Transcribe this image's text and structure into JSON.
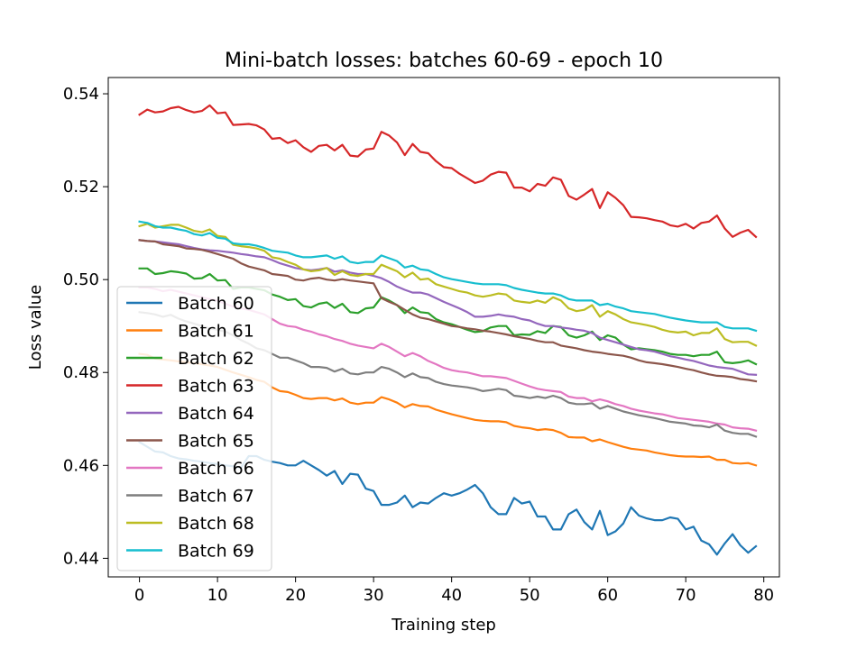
{
  "chart_data": {
    "type": "line",
    "title": "Mini-batch losses: batches 60-69 - epoch 10",
    "xlabel": "Training step",
    "ylabel": "Loss value",
    "xlim": [
      -4,
      82
    ],
    "ylim": [
      0.436,
      0.5435
    ],
    "xticks": [
      0,
      10,
      20,
      30,
      40,
      50,
      60,
      70,
      80
    ],
    "yticks": [
      0.44,
      0.46,
      0.48,
      0.5,
      0.52,
      0.54
    ],
    "ytick_labels": [
      "0.44",
      "0.46",
      "0.48",
      "0.50",
      "0.52",
      "0.54"
    ],
    "grid": false,
    "legend_position": "lower-left",
    "series": [
      {
        "name": "Batch 60",
        "color": "#1f77b4",
        "values": [
          0.465,
          0.464,
          0.463,
          0.4628,
          0.462,
          0.4615,
          0.4613,
          0.461,
          0.4608,
          0.4605,
          0.4603,
          0.46,
          0.4598,
          0.4595,
          0.462,
          0.462,
          0.4612,
          0.4608,
          0.4605,
          0.46,
          0.46,
          0.461,
          0.46,
          0.459,
          0.4578,
          0.4588,
          0.456,
          0.4582,
          0.458,
          0.455,
          0.4545,
          0.4515,
          0.4515,
          0.452,
          0.4535,
          0.451,
          0.452,
          0.4518,
          0.453,
          0.454,
          0.4535,
          0.454,
          0.4548,
          0.4558,
          0.454,
          0.451,
          0.4495,
          0.4495,
          0.453,
          0.4518,
          0.4522,
          0.449,
          0.449,
          0.4462,
          0.4462,
          0.4495,
          0.4505,
          0.4478,
          0.4462,
          0.4502,
          0.445,
          0.4458,
          0.4475,
          0.451,
          0.4492,
          0.4486,
          0.4482,
          0.4482,
          0.4488,
          0.4485,
          0.4462,
          0.4468,
          0.4438,
          0.443,
          0.4408,
          0.4432,
          0.4452,
          0.4428,
          0.4412,
          0.4426
        ]
      },
      {
        "name": "Batch 61",
        "color": "#ff7f0e",
        "values": [
          0.484,
          0.4838,
          0.483,
          0.4828,
          0.4826,
          0.4824,
          0.4822,
          0.482,
          0.4818,
          0.4815,
          0.4812,
          0.4806,
          0.48,
          0.4795,
          0.479,
          0.4784,
          0.478,
          0.4768,
          0.476,
          0.4758,
          0.4752,
          0.4745,
          0.4743,
          0.4745,
          0.4745,
          0.474,
          0.4744,
          0.4735,
          0.4732,
          0.4735,
          0.4735,
          0.4747,
          0.4742,
          0.4735,
          0.4725,
          0.4732,
          0.4728,
          0.4727,
          0.472,
          0.4715,
          0.471,
          0.4706,
          0.4702,
          0.4698,
          0.4696,
          0.4695,
          0.4695,
          0.4693,
          0.4685,
          0.4682,
          0.468,
          0.4676,
          0.4678,
          0.4676,
          0.467,
          0.4661,
          0.466,
          0.466,
          0.4652,
          0.4656,
          0.465,
          0.4645,
          0.464,
          0.4636,
          0.4634,
          0.4632,
          0.4628,
          0.4625,
          0.4622,
          0.462,
          0.4619,
          0.4619,
          0.4618,
          0.4619,
          0.4612,
          0.4612,
          0.4605,
          0.4604,
          0.4605,
          0.46
        ]
      },
      {
        "name": "Batch 62",
        "color": "#2ca02c",
        "values": [
          0.5024,
          0.5024,
          0.5012,
          0.5014,
          0.5018,
          0.5016,
          0.5013,
          0.5002,
          0.5003,
          0.5012,
          0.4998,
          0.4999,
          0.498,
          0.4983,
          0.4983,
          0.498,
          0.4977,
          0.4968,
          0.4963,
          0.4956,
          0.4958,
          0.4943,
          0.494,
          0.4948,
          0.4951,
          0.4939,
          0.4948,
          0.493,
          0.4928,
          0.4938,
          0.494,
          0.4962,
          0.4955,
          0.4945,
          0.4928,
          0.494,
          0.493,
          0.4928,
          0.4915,
          0.4908,
          0.4904,
          0.4898,
          0.4892,
          0.4887,
          0.4889,
          0.4897,
          0.49,
          0.49,
          0.488,
          0.4882,
          0.4881,
          0.4889,
          0.4885,
          0.49,
          0.4898,
          0.488,
          0.4875,
          0.488,
          0.4888,
          0.487,
          0.488,
          0.4875,
          0.486,
          0.485,
          0.4852,
          0.485,
          0.4848,
          0.4845,
          0.484,
          0.4838,
          0.4838,
          0.4835,
          0.4838,
          0.4838,
          0.4845,
          0.4822,
          0.482,
          0.4822,
          0.4826,
          0.4818
        ]
      },
      {
        "name": "Batch 63",
        "color": "#d62728",
        "values": [
          0.5355,
          0.5366,
          0.536,
          0.5362,
          0.5369,
          0.5372,
          0.5365,
          0.536,
          0.5363,
          0.5375,
          0.5358,
          0.536,
          0.5333,
          0.5334,
          0.5335,
          0.5332,
          0.5323,
          0.5303,
          0.5305,
          0.5294,
          0.53,
          0.5285,
          0.5275,
          0.5288,
          0.529,
          0.5278,
          0.529,
          0.5267,
          0.5265,
          0.528,
          0.5282,
          0.5318,
          0.531,
          0.5295,
          0.5268,
          0.5292,
          0.5275,
          0.5272,
          0.5255,
          0.5242,
          0.524,
          0.5228,
          0.5218,
          0.5208,
          0.5213,
          0.5226,
          0.5232,
          0.523,
          0.5198,
          0.5198,
          0.519,
          0.5206,
          0.5202,
          0.522,
          0.5215,
          0.518,
          0.5172,
          0.5183,
          0.5195,
          0.5154,
          0.5188,
          0.5176,
          0.516,
          0.5135,
          0.5134,
          0.5132,
          0.5128,
          0.5125,
          0.5117,
          0.5114,
          0.512,
          0.511,
          0.5122,
          0.5125,
          0.5138,
          0.511,
          0.5092,
          0.5101,
          0.5107,
          0.5092
        ]
      },
      {
        "name": "Batch 64",
        "color": "#9467bd",
        "values": [
          0.5085,
          0.5083,
          0.5082,
          0.508,
          0.5078,
          0.5076,
          0.5072,
          0.5068,
          0.5065,
          0.5063,
          0.5062,
          0.506,
          0.5058,
          0.5055,
          0.5053,
          0.505,
          0.5048,
          0.5042,
          0.5035,
          0.503,
          0.5025,
          0.5022,
          0.502,
          0.5022,
          0.5025,
          0.5017,
          0.502,
          0.5015,
          0.5012,
          0.5012,
          0.5008,
          0.5003,
          0.4995,
          0.4985,
          0.4978,
          0.4972,
          0.4972,
          0.4968,
          0.496,
          0.4952,
          0.4945,
          0.4938,
          0.493,
          0.492,
          0.492,
          0.4922,
          0.4925,
          0.4922,
          0.492,
          0.4915,
          0.4912,
          0.4905,
          0.49,
          0.49,
          0.4897,
          0.4895,
          0.4892,
          0.489,
          0.4885,
          0.4875,
          0.487,
          0.4865,
          0.486,
          0.4855,
          0.485,
          0.4848,
          0.4845,
          0.484,
          0.4835,
          0.4832,
          0.4828,
          0.4825,
          0.482,
          0.4815,
          0.4812,
          0.481,
          0.4808,
          0.4802,
          0.4796,
          0.4795
        ]
      },
      {
        "name": "Batch 65",
        "color": "#8c564b",
        "values": [
          0.5085,
          0.5083,
          0.5082,
          0.5076,
          0.5074,
          0.5072,
          0.5067,
          0.5066,
          0.5064,
          0.506,
          0.5055,
          0.505,
          0.5045,
          0.5035,
          0.5028,
          0.5024,
          0.502,
          0.5012,
          0.501,
          0.5008,
          0.5,
          0.4998,
          0.5002,
          0.5004,
          0.5,
          0.4998,
          0.5001,
          0.4998,
          0.4996,
          0.4994,
          0.4992,
          0.496,
          0.4952,
          0.4945,
          0.4935,
          0.4925,
          0.4918,
          0.4915,
          0.491,
          0.4905,
          0.49,
          0.4898,
          0.4895,
          0.4893,
          0.489,
          0.4888,
          0.4885,
          0.4882,
          0.4878,
          0.4875,
          0.4872,
          0.4868,
          0.4865,
          0.4865,
          0.4858,
          0.4855,
          0.4852,
          0.4848,
          0.4845,
          0.4843,
          0.484,
          0.4838,
          0.4836,
          0.4832,
          0.4826,
          0.4822,
          0.482,
          0.4818,
          0.4815,
          0.4812,
          0.4808,
          0.4805,
          0.48,
          0.4796,
          0.4793,
          0.4792,
          0.479,
          0.4786,
          0.4784,
          0.4781
        ]
      },
      {
        "name": "Batch 66",
        "color": "#e377c2",
        "values": [
          0.4983,
          0.4983,
          0.498,
          0.4975,
          0.4978,
          0.4974,
          0.497,
          0.4966,
          0.4962,
          0.4958,
          0.4955,
          0.4948,
          0.4942,
          0.4938,
          0.4935,
          0.493,
          0.4925,
          0.4915,
          0.4905,
          0.49,
          0.4898,
          0.4892,
          0.4888,
          0.4882,
          0.4878,
          0.4872,
          0.4868,
          0.4862,
          0.4858,
          0.4855,
          0.4852,
          0.4862,
          0.4855,
          0.4845,
          0.4835,
          0.4842,
          0.4835,
          0.4825,
          0.4818,
          0.481,
          0.4805,
          0.4802,
          0.48,
          0.4796,
          0.4792,
          0.4792,
          0.479,
          0.4788,
          0.4782,
          0.4776,
          0.477,
          0.4765,
          0.4762,
          0.476,
          0.4758,
          0.4748,
          0.4745,
          0.4745,
          0.4738,
          0.4742,
          0.4738,
          0.4732,
          0.4728,
          0.4722,
          0.4718,
          0.4715,
          0.4712,
          0.471,
          0.4706,
          0.4702,
          0.47,
          0.4698,
          0.4696,
          0.4694,
          0.469,
          0.4688,
          0.4682,
          0.468,
          0.4679,
          0.4675
        ]
      },
      {
        "name": "Batch 67",
        "color": "#7f7f7f",
        "values": [
          0.493,
          0.4928,
          0.4925,
          0.492,
          0.4924,
          0.4916,
          0.491,
          0.4905,
          0.49,
          0.4895,
          0.4892,
          0.4888,
          0.488,
          0.487,
          0.4862,
          0.4852,
          0.4848,
          0.484,
          0.4832,
          0.4832,
          0.4826,
          0.482,
          0.4812,
          0.4812,
          0.481,
          0.4802,
          0.4808,
          0.4798,
          0.4796,
          0.48,
          0.48,
          0.4812,
          0.4808,
          0.48,
          0.479,
          0.4798,
          0.479,
          0.4788,
          0.478,
          0.4775,
          0.4772,
          0.477,
          0.4768,
          0.4765,
          0.476,
          0.4762,
          0.4765,
          0.4762,
          0.475,
          0.4748,
          0.4745,
          0.4748,
          0.4745,
          0.475,
          0.4745,
          0.4735,
          0.4732,
          0.4732,
          0.4734,
          0.4722,
          0.4728,
          0.4722,
          0.4716,
          0.4712,
          0.4708,
          0.4705,
          0.4702,
          0.4698,
          0.4694,
          0.4692,
          0.469,
          0.4686,
          0.4685,
          0.4682,
          0.4688,
          0.4675,
          0.467,
          0.4668,
          0.4668,
          0.4662
        ]
      },
      {
        "name": "Batch 68",
        "color": "#bcbd22",
        "values": [
          0.5115,
          0.512,
          0.5112,
          0.5115,
          0.5118,
          0.5118,
          0.5112,
          0.5105,
          0.5102,
          0.5108,
          0.5094,
          0.5092,
          0.5075,
          0.5072,
          0.507,
          0.5067,
          0.5062,
          0.5048,
          0.5045,
          0.5038,
          0.5032,
          0.5022,
          0.5018,
          0.502,
          0.5025,
          0.501,
          0.5018,
          0.501,
          0.5008,
          0.5012,
          0.5012,
          0.5032,
          0.5025,
          0.5018,
          0.5005,
          0.5015,
          0.5,
          0.5002,
          0.499,
          0.4985,
          0.498,
          0.4975,
          0.4972,
          0.4966,
          0.4963,
          0.4966,
          0.497,
          0.4968,
          0.4955,
          0.4952,
          0.495,
          0.4955,
          0.495,
          0.4962,
          0.4955,
          0.4938,
          0.4932,
          0.4935,
          0.4945,
          0.492,
          0.4932,
          0.4925,
          0.4915,
          0.4908,
          0.4905,
          0.4902,
          0.4898,
          0.4892,
          0.4888,
          0.4886,
          0.4888,
          0.488,
          0.4885,
          0.4885,
          0.4895,
          0.4872,
          0.4865,
          0.4866,
          0.4866,
          0.4858
        ]
      },
      {
        "name": "Batch 69",
        "color": "#17becf",
        "values": [
          0.5125,
          0.5122,
          0.5115,
          0.5112,
          0.5112,
          0.5108,
          0.5105,
          0.5098,
          0.5095,
          0.51,
          0.509,
          0.5088,
          0.5078,
          0.5076,
          0.5076,
          0.5073,
          0.5068,
          0.5062,
          0.506,
          0.5058,
          0.5052,
          0.5048,
          0.5048,
          0.505,
          0.5052,
          0.5045,
          0.505,
          0.5038,
          0.5035,
          0.5038,
          0.5038,
          0.5052,
          0.5046,
          0.504,
          0.5026,
          0.503,
          0.5022,
          0.502,
          0.5012,
          0.5005,
          0.5001,
          0.4998,
          0.4995,
          0.4992,
          0.499,
          0.499,
          0.499,
          0.4988,
          0.4982,
          0.4978,
          0.4975,
          0.4972,
          0.497,
          0.497,
          0.4966,
          0.4958,
          0.4955,
          0.4955,
          0.4955,
          0.4945,
          0.4948,
          0.4942,
          0.4938,
          0.4932,
          0.493,
          0.4928,
          0.4926,
          0.4922,
          0.4918,
          0.4915,
          0.4912,
          0.491,
          0.4908,
          0.4908,
          0.4908,
          0.4898,
          0.4895,
          0.4895,
          0.4895,
          0.489
        ]
      }
    ]
  }
}
